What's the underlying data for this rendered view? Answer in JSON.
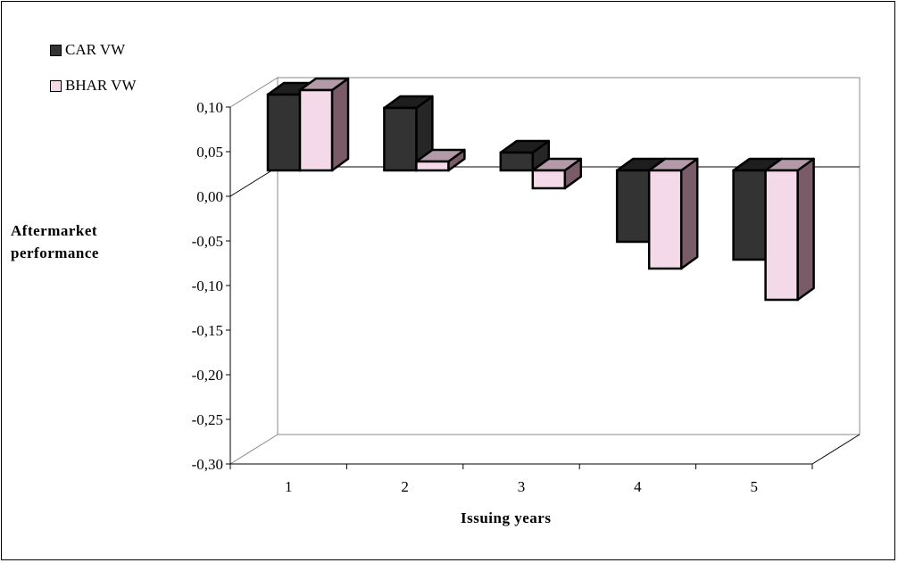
{
  "chart_data": {
    "type": "bar",
    "categories": [
      "1",
      "2",
      "3",
      "4",
      "5"
    ],
    "series": [
      {
        "name": "CAR VW",
        "values": [
          0.085,
          0.07,
          0.02,
          -0.08,
          -0.1
        ],
        "color": "#333333"
      },
      {
        "name": "BHAR VW",
        "values": [
          0.09,
          0.01,
          -0.02,
          -0.11,
          -0.145
        ],
        "color": "#f4d9e8"
      }
    ],
    "ylim": [
      -0.3,
      0.1
    ],
    "yticks": [
      "0,10",
      "0,05",
      "0,00",
      "-0,05",
      "-0,10",
      "-0,15",
      "-0,20",
      "-0,25",
      "-0,30"
    ],
    "xlabel": "Issuing years",
    "ylabel": "Aftermarket performance",
    "legend_position": "top-left",
    "style": "3d-column"
  }
}
